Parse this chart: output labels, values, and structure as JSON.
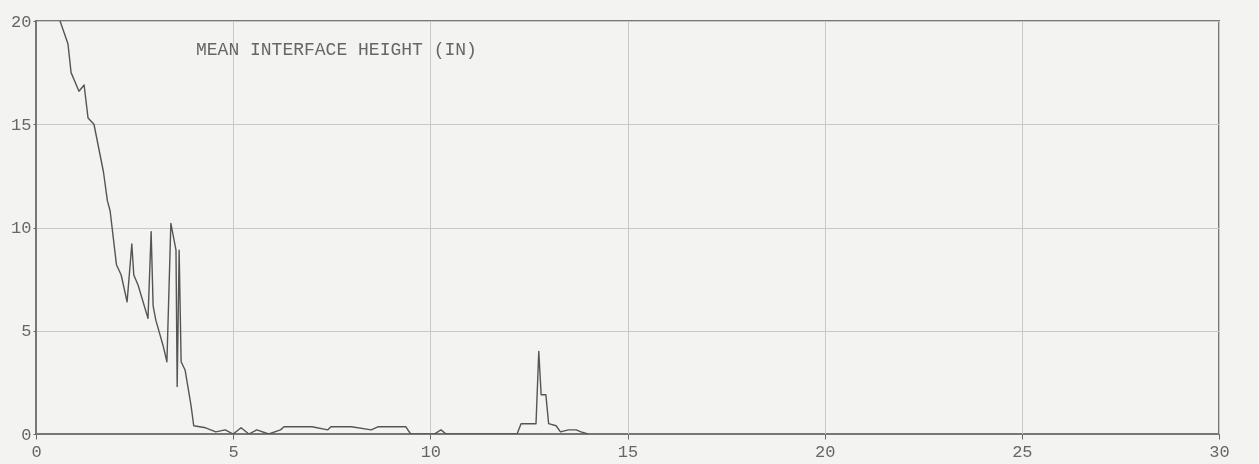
{
  "chart_data": {
    "type": "line",
    "title": "MEAN INTERFACE HEIGHT (IN)",
    "x": [
      0.61,
      0.81,
      0.89,
      1.09,
      1.22,
      1.32,
      1.47,
      1.71,
      1.81,
      1.88,
      2.04,
      2.16,
      2.31,
      2.43,
      2.48,
      2.59,
      2.84,
      2.92,
      2.97,
      3.04,
      3.22,
      3.32,
      3.42,
      3.55,
      3.58,
      3.63,
      3.68,
      3.78,
      3.93,
      4.0,
      4.3,
      4.56,
      4.8,
      5.0,
      5.2,
      5.4,
      5.6,
      5.9,
      6.2,
      6.29,
      7.0,
      7.4,
      7.48,
      8.0,
      8.5,
      8.67,
      9.38,
      9.5,
      10.1,
      10.27,
      10.4,
      12.2,
      12.3,
      12.68,
      12.75,
      12.81,
      12.93,
      13.0,
      13.19,
      13.3,
      13.5,
      13.7,
      13.82,
      14.0
    ],
    "series": [
      {
        "color": "#555555",
        "values": [
          20,
          18.9,
          17.5,
          16.6,
          16.9,
          15.3,
          15.0,
          12.7,
          11.3,
          10.8,
          8.2,
          7.7,
          6.4,
          9.2,
          7.7,
          7.2,
          5.6,
          9.8,
          6.2,
          5.5,
          4.3,
          3.5,
          10.2,
          8.9,
          2.3,
          8.9,
          3.5,
          3.1,
          1.4,
          0.4,
          0.3,
          0.1,
          0.2,
          0,
          0.3,
          0,
          0.2,
          0,
          0.2,
          0.35,
          0.35,
          0.2,
          0.35,
          0.35,
          0.2,
          0.35,
          0.35,
          0,
          0,
          0.2,
          0,
          0,
          0.5,
          0.5,
          4.0,
          1.9,
          1.9,
          0.5,
          0.4,
          0.1,
          0.2,
          0.2,
          0.1,
          0
        ]
      }
    ],
    "xlim": [
      0,
      30
    ],
    "ylim": [
      0,
      20
    ],
    "xticks": [
      0,
      5,
      10,
      15,
      20,
      25,
      30
    ],
    "yticks": [
      0,
      5,
      10,
      15,
      20
    ],
    "grid": true,
    "marker": "none",
    "line_style": "solid"
  }
}
